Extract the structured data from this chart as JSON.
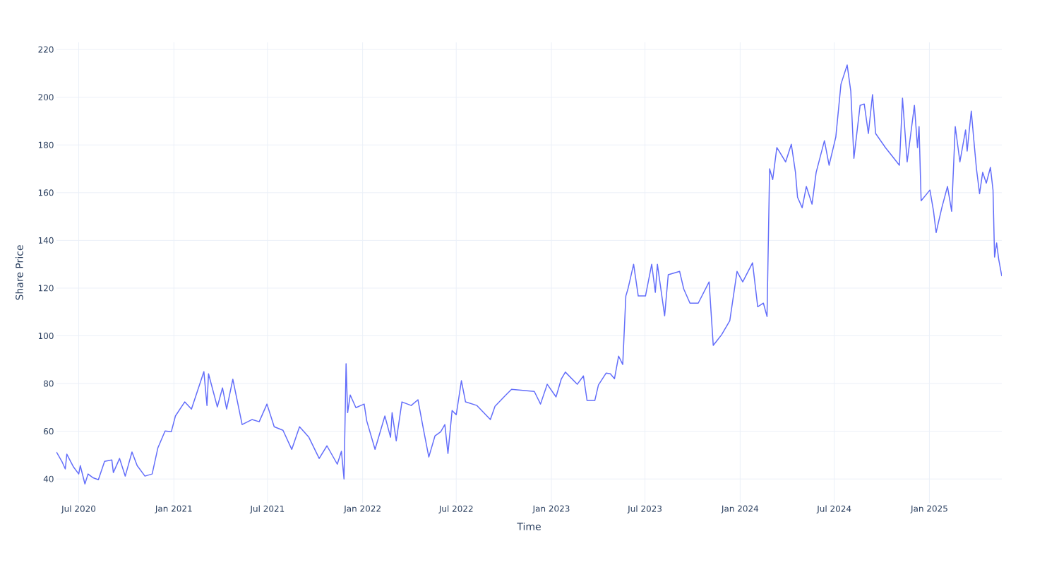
{
  "chart_data": {
    "type": "line",
    "xlabel": "Time",
    "ylabel": "Share Price",
    "color": "#636efa",
    "grid": true,
    "line_style": "solid",
    "xlim": [
      "2020-05-19",
      "2025-05-21"
    ],
    "ylim": [
      30,
      223
    ],
    "xticks": [
      {
        "value": "2020-07-01",
        "label": "Jul 2020"
      },
      {
        "value": "2021-01-01",
        "label": "Jan 2021"
      },
      {
        "value": "2021-07-01",
        "label": "Jul 2021"
      },
      {
        "value": "2022-01-01",
        "label": "Jan 2022"
      },
      {
        "value": "2022-07-01",
        "label": "Jul 2022"
      },
      {
        "value": "2023-01-01",
        "label": "Jan 2023"
      },
      {
        "value": "2023-07-01",
        "label": "Jul 2023"
      },
      {
        "value": "2024-01-01",
        "label": "Jan 2024"
      },
      {
        "value": "2024-07-01",
        "label": "Jul 2024"
      },
      {
        "value": "2025-01-01",
        "label": "Jan 2025"
      }
    ],
    "yticks": [
      40,
      60,
      80,
      100,
      120,
      140,
      160,
      180,
      200,
      220
    ],
    "x": [
      "2020-05-19",
      "2020-05-30",
      "2020-06-05",
      "2020-06-08",
      "2020-06-21",
      "2020-07-01",
      "2020-07-04",
      "2020-07-13",
      "2020-07-19",
      "2020-07-28",
      "2020-08-08",
      "2020-08-20",
      "2020-09-03",
      "2020-09-06",
      "2020-09-18",
      "2020-09-29",
      "2020-10-12",
      "2020-10-22",
      "2020-11-06",
      "2020-11-20",
      "2020-12-01",
      "2020-12-15",
      "2020-12-27",
      "2021-01-04",
      "2021-01-22",
      "2021-02-04",
      "2021-02-28",
      "2021-03-06",
      "2021-03-09",
      "2021-03-26",
      "2021-04-05",
      "2021-04-13",
      "2021-04-25",
      "2021-05-13",
      "2021-06-01",
      "2021-06-15",
      "2021-06-30",
      "2021-07-14",
      "2021-07-31",
      "2021-08-17",
      "2021-09-01",
      "2021-09-19",
      "2021-10-09",
      "2021-10-24",
      "2021-11-13",
      "2021-11-21",
      "2021-11-26",
      "2021-11-30",
      "2021-12-03",
      "2021-12-08",
      "2021-12-19",
      "2022-01-04",
      "2022-01-09",
      "2022-01-25",
      "2022-02-13",
      "2022-02-24",
      "2022-02-27",
      "2022-03-07",
      "2022-03-18",
      "2022-04-05",
      "2022-04-18",
      "2022-04-29",
      "2022-05-09",
      "2022-05-21",
      "2022-06-01",
      "2022-06-09",
      "2022-06-15",
      "2022-06-23",
      "2022-07-01",
      "2022-07-11",
      "2022-07-19",
      "2022-08-10",
      "2022-09-05",
      "2022-09-14",
      "2022-10-05",
      "2022-10-16",
      "2022-11-29",
      "2022-12-11",
      "2022-12-24",
      "2023-01-10",
      "2023-01-20",
      "2023-01-28",
      "2023-02-20",
      "2023-03-04",
      "2023-03-11",
      "2023-03-26",
      "2023-04-02",
      "2023-04-17",
      "2023-04-25",
      "2023-05-03",
      "2023-05-11",
      "2023-05-19",
      "2023-05-25",
      "2023-05-29",
      "2023-06-09",
      "2023-06-18",
      "2023-07-02",
      "2023-07-14",
      "2023-07-21",
      "2023-07-25",
      "2023-08-08",
      "2023-08-15",
      "2023-09-06",
      "2023-09-14",
      "2023-09-26",
      "2023-10-12",
      "2023-11-02",
      "2023-11-10",
      "2023-11-26",
      "2023-12-12",
      "2023-12-26",
      "2024-01-06",
      "2024-01-25",
      "2024-02-04",
      "2024-02-15",
      "2024-02-22",
      "2024-02-27",
      "2024-03-04",
      "2024-03-12",
      "2024-03-29",
      "2024-04-09",
      "2024-04-17",
      "2024-04-21",
      "2024-04-30",
      "2024-05-08",
      "2024-05-19",
      "2024-05-27",
      "2024-06-12",
      "2024-06-21",
      "2024-07-04",
      "2024-07-14",
      "2024-07-26",
      "2024-08-02",
      "2024-08-08",
      "2024-08-20",
      "2024-08-28",
      "2024-09-05",
      "2024-09-13",
      "2024-09-19",
      "2024-10-08",
      "2024-11-04",
      "2024-11-10",
      "2024-11-19",
      "2024-12-03",
      "2024-12-09",
      "2024-12-12",
      "2024-12-16",
      "2025-01-02",
      "2025-01-09",
      "2025-01-14",
      "2025-01-25",
      "2025-02-05",
      "2025-02-13",
      "2025-02-20",
      "2025-03-01",
      "2025-03-12",
      "2025-03-15",
      "2025-03-23",
      "2025-03-28",
      "2025-04-02",
      "2025-04-08",
      "2025-04-14",
      "2025-04-21",
      "2025-04-29",
      "2025-05-04",
      "2025-05-07",
      "2025-05-11",
      "2025-05-15",
      "2025-05-21"
    ],
    "values": [
      51.3,
      47.1,
      44.2,
      50.4,
      45.0,
      42.1,
      45.6,
      37.9,
      42.1,
      40.6,
      39.7,
      47.4,
      48.0,
      42.7,
      48.6,
      41.2,
      51.3,
      45.6,
      41.2,
      42.1,
      53.0,
      60.1,
      59.8,
      66.4,
      72.3,
      69.3,
      85.0,
      70.8,
      84.1,
      70.2,
      78.2,
      69.3,
      81.8,
      62.8,
      64.9,
      64.0,
      71.4,
      61.9,
      60.4,
      52.4,
      61.9,
      57.5,
      48.6,
      53.9,
      46.2,
      51.6,
      40.0,
      88.3,
      67.8,
      75.2,
      69.9,
      71.4,
      64.3,
      52.4,
      66.4,
      57.5,
      67.8,
      56.0,
      72.3,
      70.8,
      73.2,
      60.4,
      49.2,
      58.1,
      59.8,
      62.8,
      50.7,
      68.7,
      66.9,
      81.2,
      72.3,
      70.8,
      64.9,
      70.5,
      75.2,
      77.6,
      76.7,
      71.4,
      79.7,
      74.4,
      81.8,
      84.8,
      79.7,
      83.2,
      72.9,
      72.9,
      79.4,
      84.4,
      84.1,
      82.0,
      91.5,
      88.0,
      116.7,
      119.6,
      130.0,
      116.7,
      116.7,
      130.0,
      118.2,
      130.0,
      108.4,
      125.6,
      127.0,
      119.6,
      113.7,
      113.7,
      122.6,
      96.0,
      100.4,
      106.3,
      127.0,
      122.6,
      130.6,
      112.2,
      113.7,
      108.1,
      170.0,
      165.5,
      178.9,
      172.9,
      180.3,
      168.5,
      158.1,
      153.7,
      162.6,
      155.2,
      168.5,
      181.8,
      171.5,
      183.3,
      205.5,
      213.5,
      202.5,
      174.4,
      196.6,
      197.2,
      184.8,
      201.1,
      184.8,
      178.9,
      171.5,
      199.6,
      172.9,
      196.6,
      178.9,
      187.7,
      156.6,
      161.1,
      152.2,
      143.3,
      153.7,
      162.6,
      152.2,
      187.7,
      172.9,
      186.3,
      177.4,
      194.2,
      181.8,
      170.0,
      159.6,
      168.5,
      164.0,
      170.6,
      161.1,
      133.0,
      138.9,
      132.1,
      125.0
    ]
  }
}
